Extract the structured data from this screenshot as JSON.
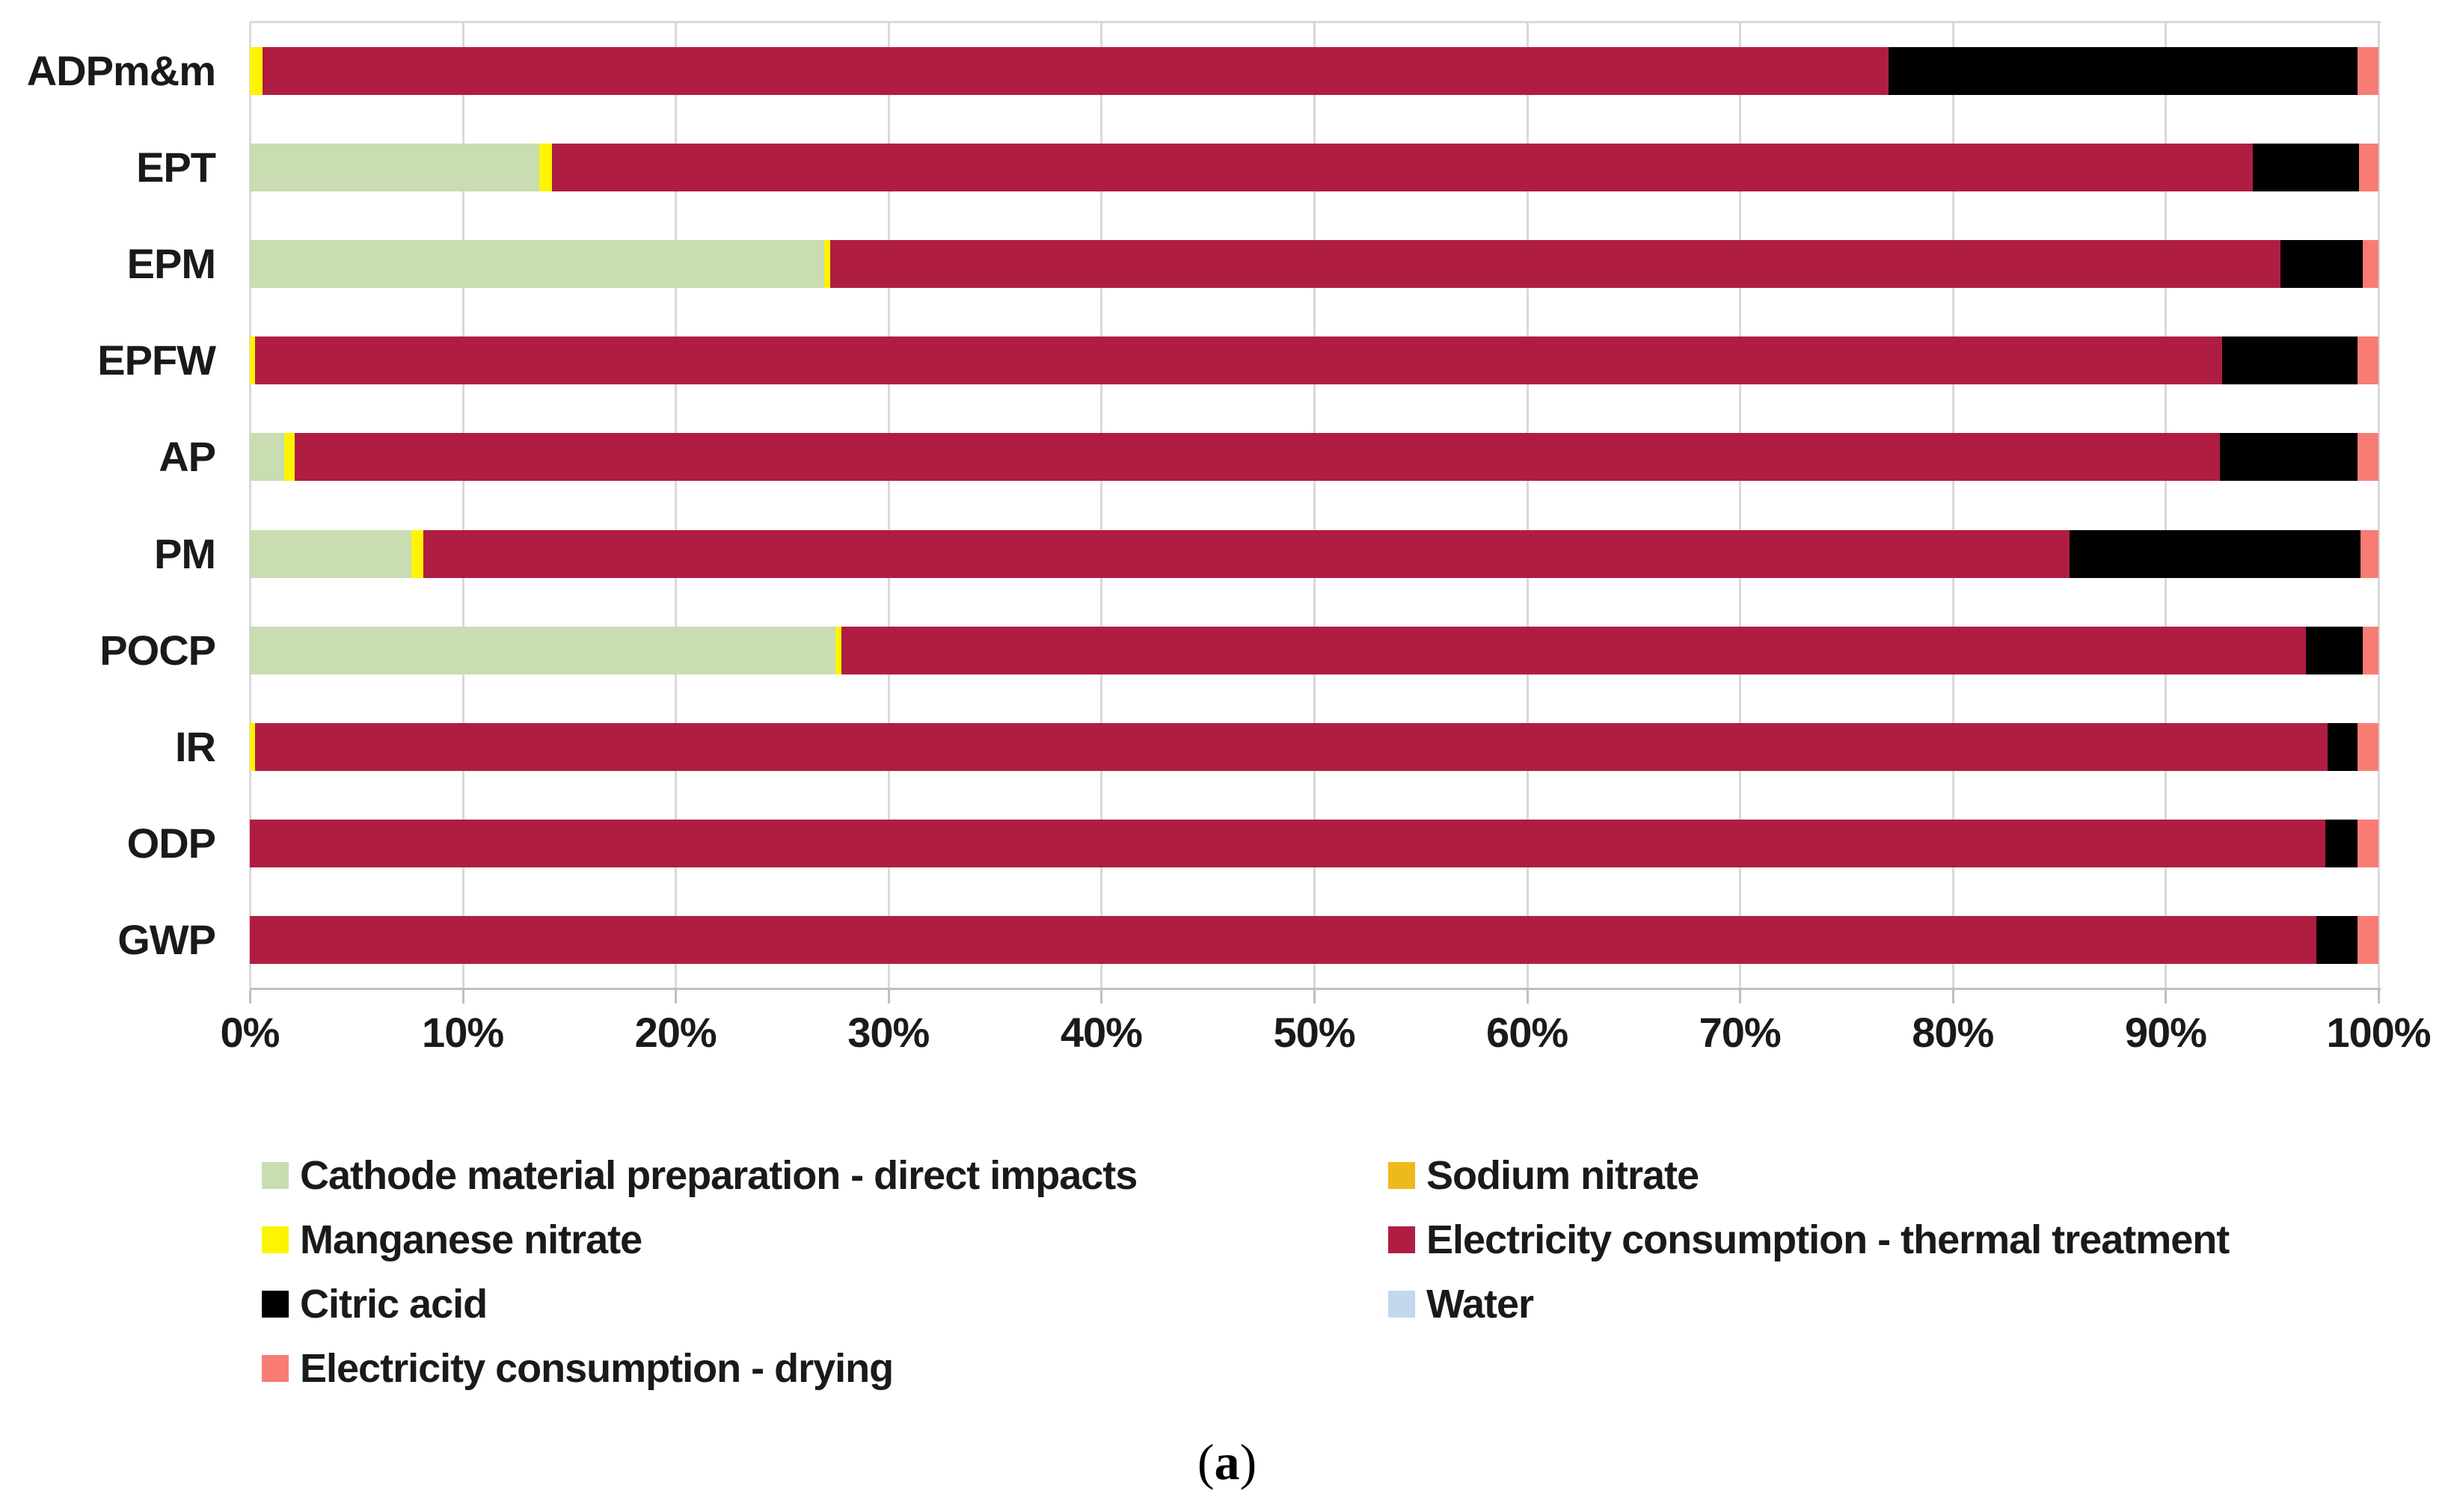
{
  "figure": {
    "caption": {
      "open": "(",
      "letter": "a",
      "close": ")"
    }
  },
  "axis": {
    "tick_labels": [
      "0%",
      "10%",
      "20%",
      "30%",
      "40%",
      "50%",
      "60%",
      "70%",
      "80%",
      "90%",
      "100%"
    ],
    "min": 0,
    "max": 100,
    "step": 10
  },
  "colors": {
    "cathode_green": "#c9dcb2",
    "sodium_orange": "#eeb91c",
    "manganese_yellow": "#fcf400",
    "thermal_red": "#b01d42",
    "citric_black": "#000000",
    "water_blue": "#c3d8ee",
    "drying_salmon": "#f87c74",
    "gridline": "#d9d9d9",
    "axis_line": "#bfbfbf",
    "text": "#1a1a1a"
  },
  "legend": {
    "left_column": [
      {
        "label": "Cathode material preparation - direct impacts",
        "color": "cathode_green"
      },
      {
        "label": "Manganese nitrate",
        "color": "manganese_yellow"
      },
      {
        "label": "Citric acid",
        "color": "citric_black"
      },
      {
        "label": "Electricity consumption - drying",
        "color": "drying_salmon"
      }
    ],
    "right_column": [
      {
        "label": "Sodium nitrate",
        "color": "sodium_orange"
      },
      {
        "label": "Electricity consumption - thermal treatment",
        "color": "thermal_red"
      },
      {
        "label": "Water",
        "color": "water_blue"
      }
    ]
  },
  "chart_data": {
    "type": "bar",
    "stacked": true,
    "orientation": "horizontal",
    "unit": "%",
    "xlim": [
      0,
      100
    ],
    "grid": "vertical",
    "legend_position": "bottom",
    "categories": [
      "ADPm&m",
      "EPT",
      "EPM",
      "EPFW",
      "AP",
      "PM",
      "POCP",
      "IR",
      "ODP",
      "GWP"
    ],
    "series": [
      {
        "name": "Cathode material preparation - direct impacts",
        "color": "cathode_green",
        "values": [
          0,
          13.6,
          27.0,
          0,
          1.6,
          7.6,
          27.5,
          0,
          0,
          0
        ]
      },
      {
        "name": "Sodium nitrate",
        "color": "sodium_orange",
        "values": [
          0,
          0,
          0,
          0,
          0,
          0,
          0,
          0,
          0,
          0
        ]
      },
      {
        "name": "Manganese nitrate",
        "color": "manganese_yellow",
        "values": [
          0.6,
          0.6,
          0.25,
          0.25,
          0.5,
          0.55,
          0.3,
          0.25,
          0,
          0
        ]
      },
      {
        "name": "Electricity consumption - thermal treatment",
        "color": "thermal_red",
        "values": [
          76.4,
          79.9,
          68.15,
          92.4,
          90.45,
          77.35,
          68.8,
          97.35,
          97.5,
          97.1
        ]
      },
      {
        "name": "Citric acid",
        "color": "citric_black",
        "values": [
          22.0,
          5.0,
          3.85,
          6.35,
          6.45,
          13.65,
          2.65,
          1.4,
          1.5,
          1.9
        ]
      },
      {
        "name": "Water",
        "color": "water_blue",
        "values": [
          0,
          0,
          0,
          0,
          0,
          0,
          0,
          0,
          0,
          0
        ]
      },
      {
        "name": "Electricity consumption - drying",
        "color": "drying_salmon",
        "values": [
          1.0,
          0.9,
          0.75,
          1.0,
          1.0,
          0.85,
          0.75,
          1.0,
          1.0,
          1.0
        ]
      }
    ]
  }
}
